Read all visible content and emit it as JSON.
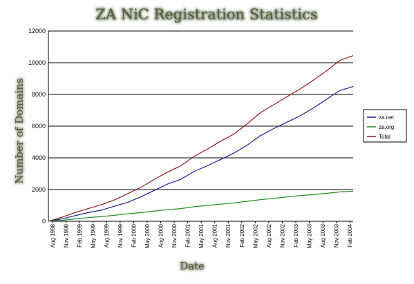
{
  "chart_data": {
    "type": "line",
    "title": "ZA NiC Registration Statistics",
    "xlabel": "Date",
    "ylabel": "Number of Domains",
    "ylim": [
      0,
      12000
    ],
    "yticks": [
      0,
      2000,
      4000,
      6000,
      8000,
      10000,
      12000
    ],
    "ytick_labels": [
      "0",
      "2000",
      "4000",
      "6000",
      "8000",
      "10000",
      "12000"
    ],
    "x_start": "Aug 1998",
    "x_end": "May 2004",
    "xtick_labels": [
      "Aug 1998",
      "Nov 1998",
      "Feb 1999",
      "May 1999",
      "Aug 1999",
      "Nov 1999",
      "Feb 2000",
      "May 2000",
      "Aug 2000",
      "Nov 2000",
      "Feb 2001",
      "May 2001",
      "Aug 2001",
      "Nov 2001",
      "Feb 2002",
      "May 2002",
      "Aug 2002",
      "Nov 2002",
      "Feb 2003",
      "May 2003",
      "Aug 2003",
      "Nov 2003",
      "Feb 2004"
    ],
    "grid": "horizontal",
    "legend_position": "right",
    "series": [
      {
        "name": "za.net",
        "color": "#1a1a8c",
        "values": [
          0,
          150,
          350,
          550,
          700,
          950,
          1200,
          1550,
          1950,
          2350,
          2650,
          3150,
          3500,
          3900,
          4300,
          4800,
          5400,
          5850,
          6250,
          6650,
          7150,
          7700,
          8250,
          8500
        ]
      },
      {
        "name": "za.org",
        "color": "#1a8c1a",
        "values": [
          0,
          60,
          150,
          230,
          300,
          380,
          470,
          550,
          650,
          730,
          800,
          920,
          1000,
          1080,
          1160,
          1260,
          1360,
          1440,
          1540,
          1620,
          1680,
          1760,
          1850,
          1900
        ]
      },
      {
        "name": "Total",
        "color": "#8c1a1a",
        "values": [
          0,
          250,
          550,
          800,
          1050,
          1350,
          1750,
          2150,
          2650,
          3100,
          3500,
          4100,
          4550,
          5050,
          5500,
          6150,
          6850,
          7350,
          7850,
          8350,
          8900,
          9500,
          10150,
          10450
        ]
      }
    ]
  }
}
